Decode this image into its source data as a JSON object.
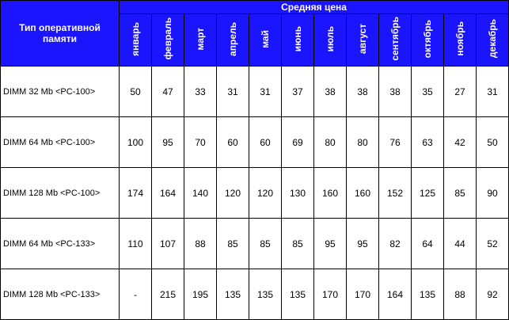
{
  "header": {
    "row_title": "Тип оперативной памяти",
    "group_title": "Средняя цена",
    "months": [
      "январь",
      "февраль",
      "март",
      "апрель",
      "май",
      "июнь",
      "июль",
      "август",
      "сентябрь",
      "октябрь",
      "ноябрь",
      "декабрь"
    ]
  },
  "table": {
    "rows": [
      {
        "name": "DIMM 32 Mb <PC-100>",
        "values": [
          50,
          47,
          33,
          31,
          31,
          37,
          38,
          38,
          38,
          35,
          27,
          31
        ]
      },
      {
        "name": "DIMM 64 Mb <PC-100>",
        "values": [
          100,
          95,
          70,
          60,
          60,
          69,
          80,
          80,
          76,
          63,
          42,
          50
        ]
      },
      {
        "name": "DIMM 128 Mb <PC-100>",
        "values": [
          174,
          164,
          140,
          120,
          120,
          130,
          160,
          160,
          152,
          125,
          85,
          90
        ]
      },
      {
        "name": "DIMM 64 Mb <PC-133>",
        "values": [
          110,
          107,
          88,
          85,
          85,
          85,
          95,
          95,
          82,
          64,
          44,
          52
        ]
      },
      {
        "name": "DIMM 128 Mb <PC-133>",
        "values": [
          "-",
          215,
          195,
          135,
          135,
          135,
          170,
          170,
          164,
          135,
          88,
          92
        ]
      }
    ]
  }
}
